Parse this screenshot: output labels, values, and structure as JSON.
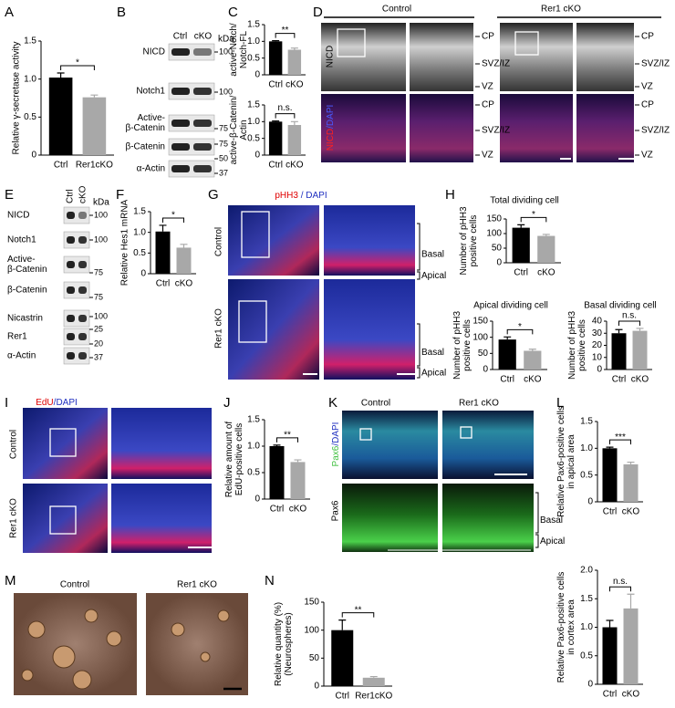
{
  "chart_data": [
    {
      "type": "bar",
      "ylabel": [
        "Relative γ-secretase activity"
      ],
      "categories": [
        "Ctrl",
        "Rer1cKO"
      ],
      "values": [
        1.02,
        0.76
      ],
      "errors": [
        0.06,
        0.03
      ],
      "colors": [
        "#000000",
        "#a8a8a8"
      ],
      "ylim": [
        0,
        1.5
      ],
      "yticks": [
        0,
        0.5,
        {
          "value": 1,
          "label": "1.0"
        },
        1.5
      ],
      "significance": "*"
    },
    {
      "type": "bar",
      "ylabel": [
        "active-Notch/",
        "Notch-FL"
      ],
      "categories": [
        "Ctrl",
        "cKO"
      ],
      "values": [
        1.0,
        0.75
      ],
      "errors": [
        0.02,
        0.05
      ],
      "colors": [
        "#000000",
        "#a8a8a8"
      ],
      "ylim": [
        0,
        1.5
      ],
      "yticks": [
        0,
        0.5,
        {
          "value": 1,
          "label": "1.0"
        },
        1.5
      ],
      "significance": "**"
    },
    {
      "type": "bar",
      "ylabel": [
        "active-β-Catenin/",
        "Actin"
      ],
      "categories": [
        "Ctrl",
        "cKO"
      ],
      "values": [
        1.0,
        0.9
      ],
      "errors": [
        0.02,
        0.1
      ],
      "colors": [
        "#000000",
        "#a8a8a8"
      ],
      "ylim": [
        0,
        1.5
      ],
      "yticks": [
        0,
        0.5,
        {
          "value": 1,
          "label": "1.0"
        },
        1.5
      ],
      "significance": "n.s."
    },
    {
      "type": "bar",
      "ylabel": [
        "Relative Hes1 mRNA"
      ],
      "categories": [
        "Ctrl",
        "cKO"
      ],
      "values": [
        1.02,
        0.63
      ],
      "errors": [
        0.15,
        0.08
      ],
      "colors": [
        "#000000",
        "#a8a8a8"
      ],
      "ylim": [
        0,
        1.5
      ],
      "yticks": [
        0,
        0.5,
        {
          "value": 1,
          "label": "1.0"
        },
        1.5
      ],
      "significance": "*"
    },
    {
      "type": "bar",
      "title": "Total dividing cell",
      "ylabel": [
        "Number of pHH3",
        "positive cells"
      ],
      "categories": [
        "Ctrl",
        "cKO"
      ],
      "values": [
        120,
        92
      ],
      "errors": [
        10,
        5
      ],
      "colors": [
        "#000000",
        "#a8a8a8"
      ],
      "ylim": [
        0,
        150
      ],
      "yticks": [
        0,
        50,
        100,
        150
      ],
      "significance": "*"
    },
    {
      "type": "bar",
      "title": "Apical dividing cell",
      "ylabel": [
        "Number of pHH3",
        "positive cells"
      ],
      "categories": [
        "Ctrl",
        "cKO"
      ],
      "values": [
        93,
        58
      ],
      "errors": [
        8,
        5
      ],
      "colors": [
        "#000000",
        "#a8a8a8"
      ],
      "ylim": [
        0,
        150
      ],
      "yticks": [
        0,
        50,
        100,
        150
      ],
      "significance": "*"
    },
    {
      "type": "bar",
      "title": "Basal dividing cell",
      "ylabel": [
        "Number of pHH3",
        "positive cells"
      ],
      "categories": [
        "Ctrl",
        "cKO"
      ],
      "values": [
        30,
        32
      ],
      "errors": [
        3,
        2
      ],
      "colors": [
        "#000000",
        "#a8a8a8"
      ],
      "ylim": [
        0,
        40
      ],
      "yticks": [
        0,
        10,
        20,
        30,
        40
      ],
      "significance": "n.s."
    },
    {
      "type": "bar",
      "ylabel": [
        "Relative amount of",
        "EdU-positive cells"
      ],
      "categories": [
        "Ctrl",
        "cKO"
      ],
      "values": [
        1.0,
        0.7
      ],
      "errors": [
        0.02,
        0.04
      ],
      "colors": [
        "#000000",
        "#a8a8a8"
      ],
      "ylim": [
        0,
        1.5
      ],
      "yticks": [
        0,
        0.5,
        {
          "value": 1,
          "label": "1.0"
        },
        1.5
      ],
      "significance": "**"
    },
    {
      "type": "bar",
      "ylabel": [
        "Relative Pax6-positive cells",
        "in apical area"
      ],
      "categories": [
        "Ctrl",
        "cKO"
      ],
      "values": [
        1.0,
        0.7
      ],
      "errors": [
        0.02,
        0.04
      ],
      "colors": [
        "#000000",
        "#a8a8a8"
      ],
      "ylim": [
        0,
        1.5
      ],
      "yticks": [
        0,
        0.5,
        {
          "value": 1,
          "label": "1.0"
        },
        1.5
      ],
      "significance": "***"
    },
    {
      "type": "bar",
      "ylabel": [
        "Relative Pax6-positive cells",
        "in cortex area"
      ],
      "categories": [
        "Ctrl",
        "cKO"
      ],
      "values": [
        1.0,
        1.33
      ],
      "errors": [
        0.12,
        0.25
      ],
      "colors": [
        "#000000",
        "#a8a8a8"
      ],
      "ylim": [
        0,
        2
      ],
      "yticks": [
        0,
        0.5,
        {
          "value": 1,
          "label": "1.0"
        },
        1.5,
        {
          "value": 2,
          "label": "2.0"
        }
      ],
      "significance": "n.s."
    },
    {
      "type": "bar",
      "ylabel": [
        "Relative quantity (%)",
        "(Neurospheres)"
      ],
      "categories": [
        "Ctrl",
        "Rer1cKO"
      ],
      "values": [
        100,
        15
      ],
      "errors": [
        18,
        2
      ],
      "colors": [
        "#000000",
        "#a8a8a8"
      ],
      "ylim": [
        0,
        150
      ],
      "yticks": [
        0,
        50,
        100,
        150
      ],
      "significance": "**"
    }
  ],
  "figure": {
    "panel_letters": [
      "A",
      "B",
      "C",
      "D",
      "E",
      "F",
      "G",
      "H",
      "I",
      "J",
      "K",
      "L",
      "M",
      "N"
    ],
    "blot_b": {
      "lanes": [
        "Ctrl",
        "cKO"
      ],
      "kda": "kDa",
      "rows": [
        [
          "NICD"
        ],
        [
          "Notch1"
        ],
        [
          "Active-",
          "β-Catenin"
        ],
        [
          "β-Catenin"
        ],
        [
          "α-Actin"
        ]
      ],
      "markers": [
        "100",
        "100",
        "75",
        "75",
        "50",
        "37"
      ]
    },
    "panel_d": {
      "columns": [
        "Control",
        "Rer1 cKO"
      ],
      "row_top": "NICD",
      "row_bottom": [
        "NICD",
        "/",
        "DAPI"
      ],
      "regions": [
        "CP",
        "SVZ/IZ",
        "VZ"
      ]
    },
    "blot_e": {
      "lanes": [
        "Ctrl",
        "cKO"
      ],
      "kda": "kDa",
      "rows": [
        [
          "NICD"
        ],
        [
          "Notch1"
        ],
        [
          "Active-",
          "β-Catenin"
        ],
        [
          "β-Catenin"
        ],
        [
          "Nicastrin"
        ],
        [
          "Rer1"
        ],
        [
          "α-Actin"
        ]
      ],
      "markers": [
        "100",
        "100",
        "75",
        "75",
        "100",
        "25",
        "20",
        "37"
      ]
    },
    "panel_g": {
      "stain": [
        "pHH3",
        " / ",
        "DAPI"
      ],
      "rows": [
        "Control",
        "Rer1 cKO"
      ],
      "zones": [
        "Basal",
        "Apical"
      ]
    },
    "panel_i": {
      "stain": [
        "EdU",
        "/",
        "DAPI"
      ],
      "rows": [
        "Control",
        "Rer1 cKO"
      ]
    },
    "panel_k": {
      "columns": [
        "Control",
        "Rer1 cKO"
      ],
      "stain_top": [
        "Pax6",
        "/",
        "DAPI"
      ],
      "stain_bottom": "Pax6",
      "zones": [
        "Basal",
        "Apical"
      ]
    },
    "panel_m": {
      "columns": [
        "Control",
        "Rer1 cKO"
      ]
    }
  }
}
